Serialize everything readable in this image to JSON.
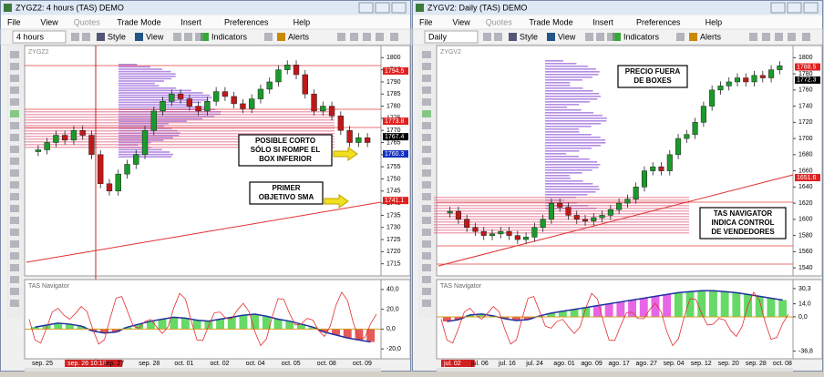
{
  "windows": [
    {
      "title": "ZYGZ2: 4 hours (TAS) DEMO",
      "menu": [
        "File",
        "View",
        "Quotes",
        "Trade Mode",
        "Insert",
        "Preferences",
        "Help"
      ],
      "timeframe": "4 hours",
      "toolbar": [
        "Style",
        "View",
        "Indicators",
        "Alerts"
      ],
      "symbol": "ZYGZ2",
      "indicator": "TAS Navigator",
      "ylim": [
        1710,
        1805
      ],
      "yticks": [
        1715,
        1720,
        1725,
        1730,
        1735,
        1740,
        1745,
        1750,
        1755,
        1760,
        1765,
        1770,
        1775,
        1780,
        1785,
        1790,
        1795,
        1800
      ],
      "price_tags": [
        {
          "value": 1794.5,
          "color": "#e02020"
        },
        {
          "value": 1773.8,
          "color": "#e02020"
        },
        {
          "value": 1767.4,
          "color": "#000000"
        },
        {
          "value": 1760.3,
          "color": "#1030c0"
        },
        {
          "value": 1741.1,
          "color": "#e02020"
        }
      ],
      "closes": [
        1762,
        1765,
        1768,
        1766,
        1770,
        1768,
        1760,
        1748,
        1745,
        1752,
        1756,
        1760,
        1770,
        1778,
        1782,
        1785,
        1783,
        1780,
        1778,
        1782,
        1786,
        1784,
        1781,
        1779,
        1783,
        1787,
        1790,
        1795,
        1797,
        1793,
        1785,
        1778,
        1780,
        1776,
        1770,
        1765,
        1767,
        1765
      ],
      "annotations": [
        [
          "POSIBLE CORTO",
          "SÓLO SI ROMPE EL",
          "BOX INFERIOR"
        ],
        [
          "PRIMER",
          "OBJETIVO SMA"
        ]
      ],
      "ind_ylim": [
        -30,
        50
      ],
      "ind_yticks": [
        {
          "value": 40,
          "label": "40,0"
        },
        {
          "value": 20,
          "label": "20,0"
        },
        {
          "value": 0,
          "label": "0,0"
        },
        {
          "value": -20,
          "label": "-20,0"
        }
      ],
      "histogram": [
        2,
        4,
        6,
        5,
        3,
        -2,
        -4,
        -3,
        2,
        5,
        8,
        10,
        12,
        11,
        9,
        8,
        10,
        12,
        14,
        15,
        13,
        10,
        8,
        5,
        2,
        -3,
        -6,
        -9,
        -11,
        -13
      ],
      "dates": [
        "sep. 25",
        "sep. 26 10:18",
        "sep. 27",
        "sep. 28",
        "oct. 01",
        "oct. 02",
        "oct. 04",
        "oct. 05",
        "oct. 08",
        "oct. 09"
      ],
      "highlight_date": 1
    },
    {
      "title": "ZYGV2: Daily (TAS) DEMO",
      "menu": [
        "File",
        "View",
        "Quotes",
        "Trade Mode",
        "Insert",
        "Preferences",
        "Help"
      ],
      "timeframe": "Daily",
      "toolbar": [
        "Style",
        "View",
        "Indicators",
        "Alerts"
      ],
      "symbol": "ZYGV2",
      "indicator": "TAS Navigator",
      "ylim": [
        1530,
        1815
      ],
      "yticks": [
        1540,
        1560,
        1580,
        1600,
        1620,
        1640,
        1660,
        1680,
        1700,
        1720,
        1740,
        1760,
        1780,
        1800
      ],
      "price_tags": [
        {
          "value": 1788.5,
          "color": "#e02020"
        },
        {
          "value": 1772.3,
          "color": "#000000"
        },
        {
          "value": 1651.6,
          "color": "#e02020"
        }
      ],
      "closes": [
        1610,
        1600,
        1590,
        1585,
        1580,
        1582,
        1585,
        1580,
        1575,
        1578,
        1590,
        1600,
        1620,
        1615,
        1605,
        1600,
        1598,
        1602,
        1605,
        1612,
        1620,
        1625,
        1640,
        1660,
        1665,
        1660,
        1680,
        1700,
        1705,
        1720,
        1740,
        1760,
        1765,
        1770,
        1775,
        1770,
        1778,
        1775,
        1785,
        1790
      ],
      "annotations": [
        [
          "PRECIO FUERA",
          "DE BOXES"
        ],
        [
          "TAS NAVIGATOR",
          "INDICA CONTROL",
          "DE VENDEDORES"
        ]
      ],
      "ind_ylim": [
        -45,
        40
      ],
      "ind_yticks": [
        {
          "value": 30.3,
          "label": "30,3"
        },
        {
          "value": 14,
          "label": "14,0"
        },
        {
          "value": 0,
          "label": "0,0"
        },
        {
          "value": -36.8,
          "label": "-36,8"
        }
      ],
      "histogram": [
        -5,
        -3,
        2,
        3,
        1,
        -2,
        -4,
        -3,
        1,
        4,
        6,
        8,
        10,
        12,
        14,
        16,
        18,
        20,
        22,
        24,
        26,
        27,
        28,
        28,
        27,
        26,
        24,
        22,
        20,
        18
      ],
      "dates": [
        "jul. 02",
        "jul. 06",
        "jul. 16",
        "jul. 24",
        "ago. 01",
        "ago. 09",
        "ago. 17",
        "ago. 27",
        "sep. 04",
        "sep. 12",
        "sep. 20",
        "sep. 28",
        "oct. 08"
      ],
      "highlight_date": 0
    }
  ]
}
